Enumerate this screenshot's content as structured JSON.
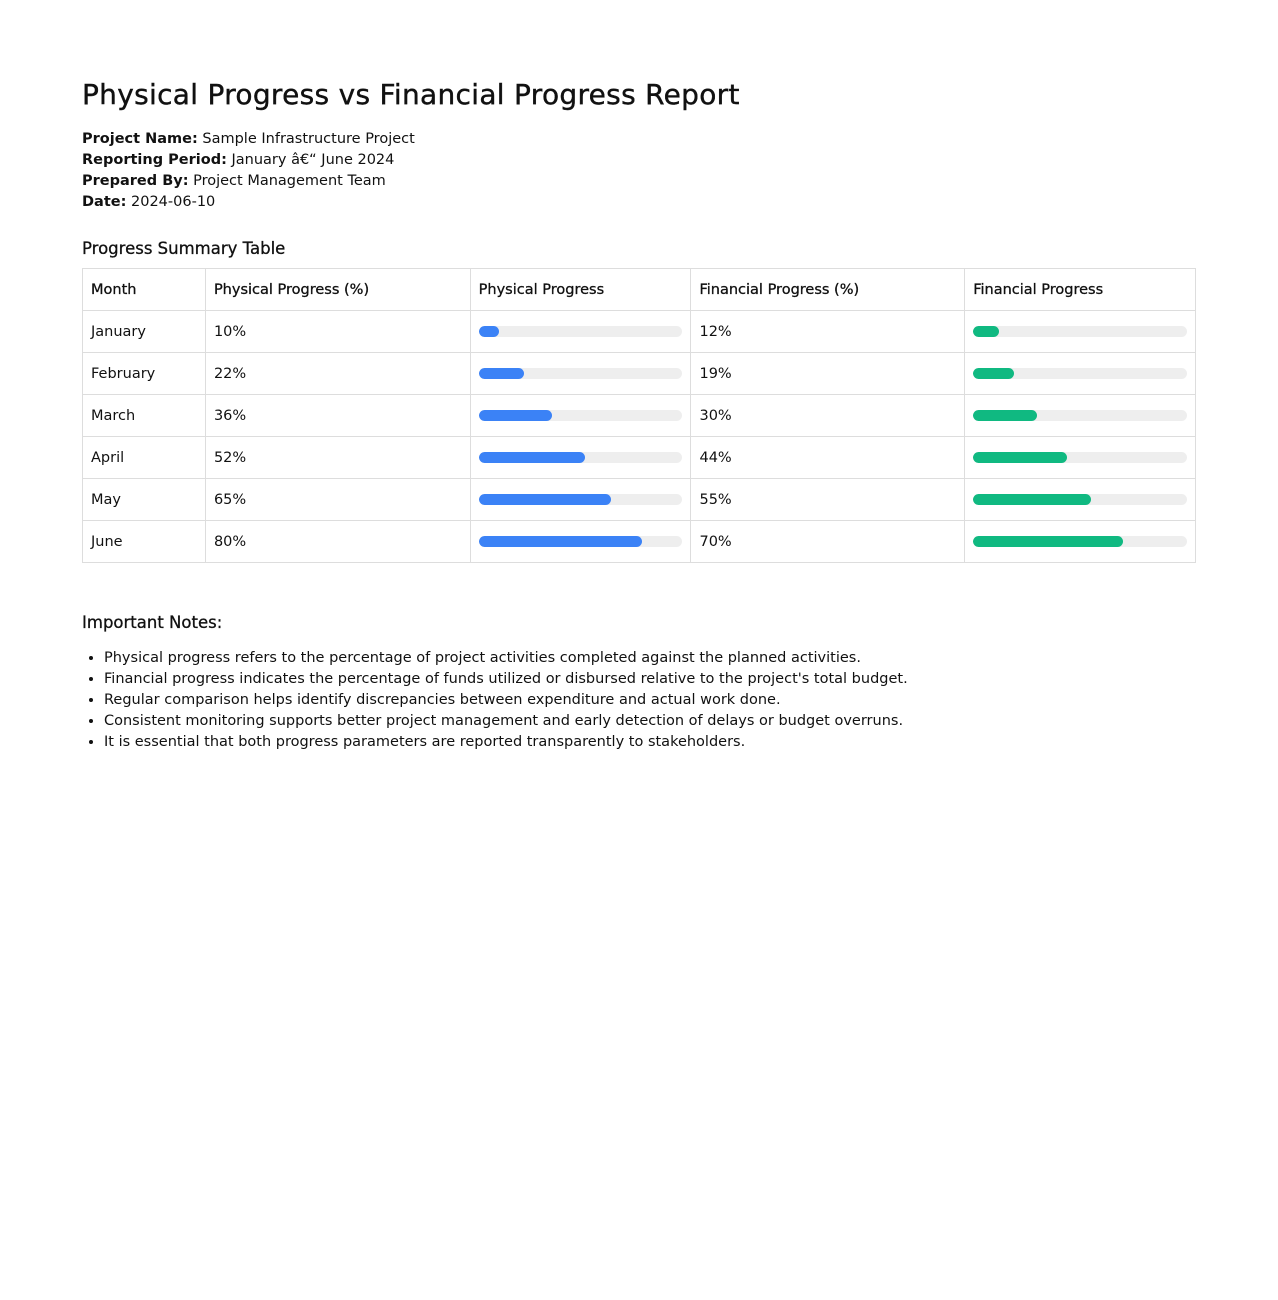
{
  "title": "Physical Progress vs Financial Progress Report",
  "meta": [
    {
      "label": "Project Name:",
      "value": "Sample Infrastructure Project"
    },
    {
      "label": "Reporting Period:",
      "value": "January â€“ June 2024"
    },
    {
      "label": "Prepared By:",
      "value": "Project Management Team"
    },
    {
      "label": "Date:",
      "value": "2024-06-10"
    }
  ],
  "table_title": "Progress Summary Table",
  "headers": [
    "Month",
    "Physical Progress (%)",
    "Physical Progress",
    "Financial Progress (%)",
    "Financial Progress"
  ],
  "rows": [
    {
      "month": "January",
      "physical": "10%",
      "physical_value": 10,
      "financial": "12%",
      "financial_value": 12
    },
    {
      "month": "February",
      "physical": "22%",
      "physical_value": 22,
      "financial": "19%",
      "financial_value": 19
    },
    {
      "month": "March",
      "physical": "36%",
      "physical_value": 36,
      "financial": "30%",
      "financial_value": 30
    },
    {
      "month": "April",
      "physical": "52%",
      "physical_value": 52,
      "financial": "44%",
      "financial_value": 44
    },
    {
      "month": "May",
      "physical": "65%",
      "physical_value": 65,
      "financial": "55%",
      "financial_value": 55
    },
    {
      "month": "June",
      "physical": "80%",
      "physical_value": 80,
      "financial": "70%",
      "financial_value": 70
    }
  ],
  "colors": {
    "physical": "#3b82f6",
    "financial": "#10b981",
    "track": "#eeeeee"
  },
  "notes_title": "Important Notes:",
  "notes": [
    "Physical progress refers to the percentage of project activities completed against the planned activities.",
    "Financial progress indicates the percentage of funds utilized or disbursed relative to the project's total budget.",
    "Regular comparison helps identify discrepancies between expenditure and actual work done.",
    "Consistent monitoring supports better project management and early detection of delays or budget overruns.",
    "It is essential that both progress parameters are reported transparently to stakeholders."
  ]
}
